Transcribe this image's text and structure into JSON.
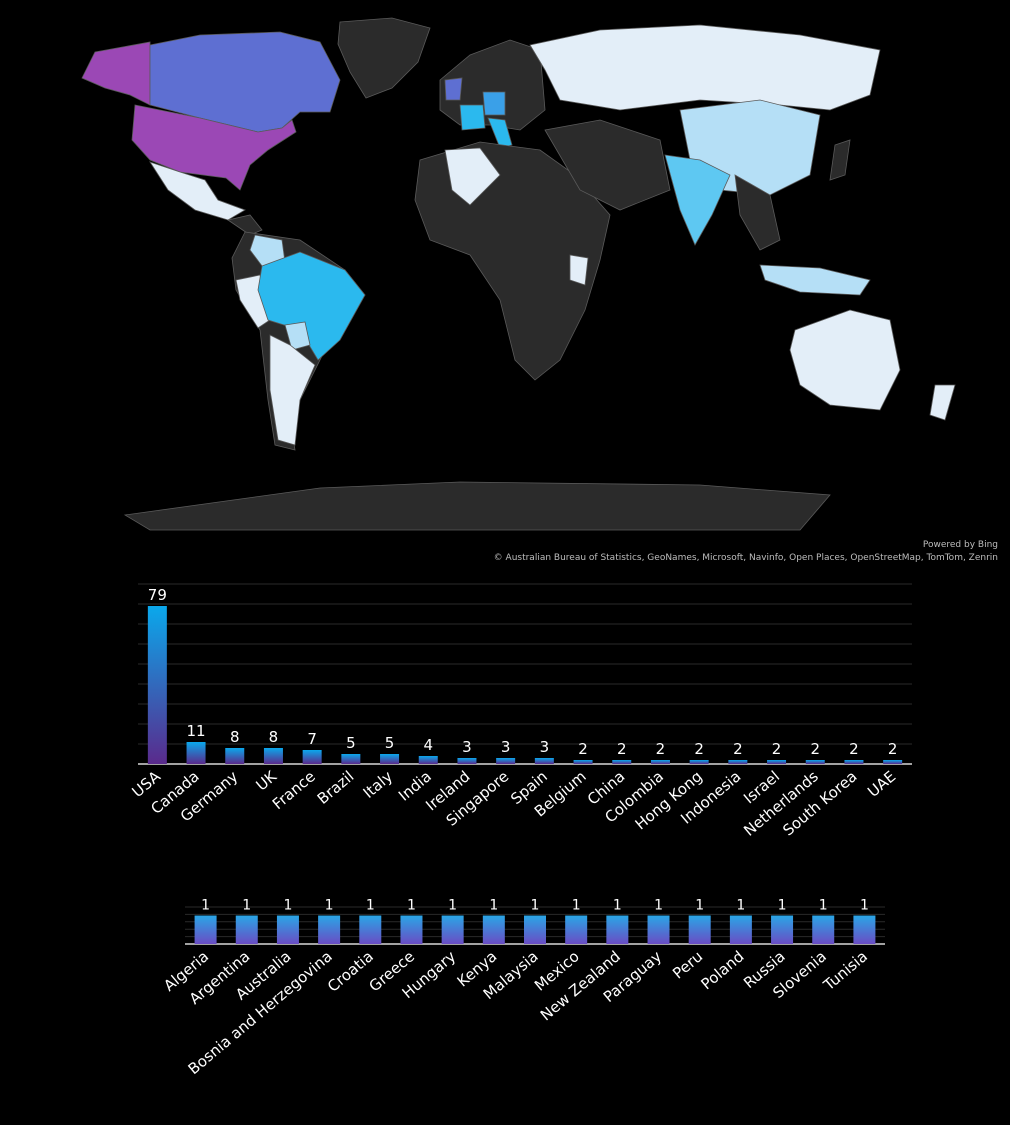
{
  "map": {
    "attribution_powered": "Powered by Bing",
    "attribution_sources": "© Australian Bureau of Statistics, GeoNames, Microsoft, Navinfo, Open Places, OpenStreetMap, TomTom, Zenrin",
    "colors": {
      "background": "#000000",
      "land_default": "#2b2b2b",
      "border": "#5a5a5a",
      "usa": "#9b48b5",
      "canada": "#5e6fd2",
      "high": "#3aa0e8",
      "mid": "#2bb9ee",
      "low_mid": "#5ec8f2",
      "low": "#b5dff6",
      "lowest": "#e3eef8"
    }
  },
  "chart_data": [
    {
      "type": "bar",
      "categories": [
        "USA",
        "Canada",
        "Germany",
        "UK",
        "France",
        "Brazil",
        "Italy",
        "India",
        "Ireland",
        "Singapore",
        "Spain",
        "Belgium",
        "China",
        "Colombia",
        "Hong Kong",
        "Indonesia",
        "Israel",
        "Netherlands",
        "South Korea",
        "UAE"
      ],
      "values": [
        79,
        11,
        8,
        8,
        7,
        5,
        5,
        4,
        3,
        3,
        3,
        2,
        2,
        2,
        2,
        2,
        2,
        2,
        2,
        2
      ],
      "data_labels": [
        "79",
        "11",
        "8",
        "8",
        "7",
        "5",
        "5",
        "4",
        "3",
        "3",
        "3",
        "2",
        "2",
        "2",
        "2",
        "2",
        "2",
        "2",
        "2",
        "2"
      ],
      "ylim": [
        0,
        90
      ],
      "grid": true,
      "bar_gradient": [
        "#0aa8ec",
        "#5a2a8c"
      ]
    },
    {
      "type": "bar",
      "categories": [
        "Algeria",
        "Argentina",
        "Australia",
        "Bosnia and Herzegovina",
        "Croatia",
        "Greece",
        "Hungary",
        "Kenya",
        "Malaysia",
        "Mexico",
        "New Zealand",
        "Paraguay",
        "Peru",
        "Poland",
        "Russia",
        "Slovenia",
        "Tunisia"
      ],
      "values": [
        1,
        1,
        1,
        1,
        1,
        1,
        1,
        1,
        1,
        1,
        1,
        1,
        1,
        1,
        1,
        1,
        1
      ],
      "data_labels": [
        "1",
        "1",
        "1",
        "1",
        "1",
        "1",
        "1",
        "1",
        "1",
        "1",
        "1",
        "1",
        "1",
        "1",
        "1",
        "1",
        "1"
      ],
      "ylim": [
        0,
        1.3
      ],
      "grid": true,
      "bar_gradient": [
        "#2aa6e6",
        "#6a4cc4"
      ]
    }
  ]
}
